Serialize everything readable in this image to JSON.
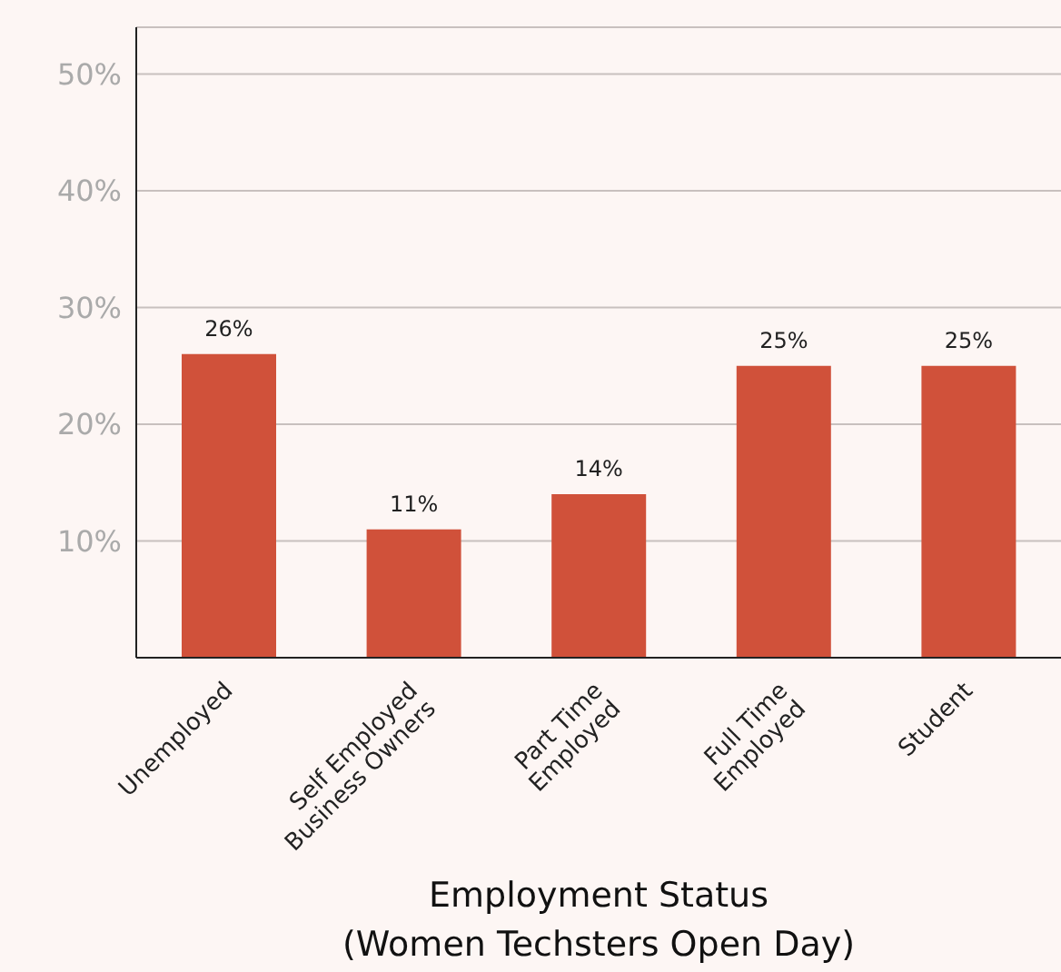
{
  "chart_data": {
    "type": "bar",
    "xlabel": "Employment Status\n(Women Techsters Open Day)",
    "categories": [
      "Unemployed",
      "Self Employed\nBusiness Owners",
      "Part Time\nEmployed",
      "Full Time\nEmployed",
      "Student"
    ],
    "values": [
      26,
      11,
      14,
      25,
      25
    ],
    "color": "#d0513a",
    "value_labels": [
      "26%",
      "11%",
      "14%",
      "25%",
      "25%"
    ],
    "ylim": [
      0,
      54
    ],
    "yticks": [
      {
        "value": 10,
        "label": "10%"
      },
      {
        "value": 20,
        "label": "20%"
      },
      {
        "value": 30,
        "label": "30%"
      },
      {
        "value": 40,
        "label": "40%"
      },
      {
        "value": 50,
        "label": "50%"
      }
    ],
    "grid": "y",
    "legend": false
  }
}
